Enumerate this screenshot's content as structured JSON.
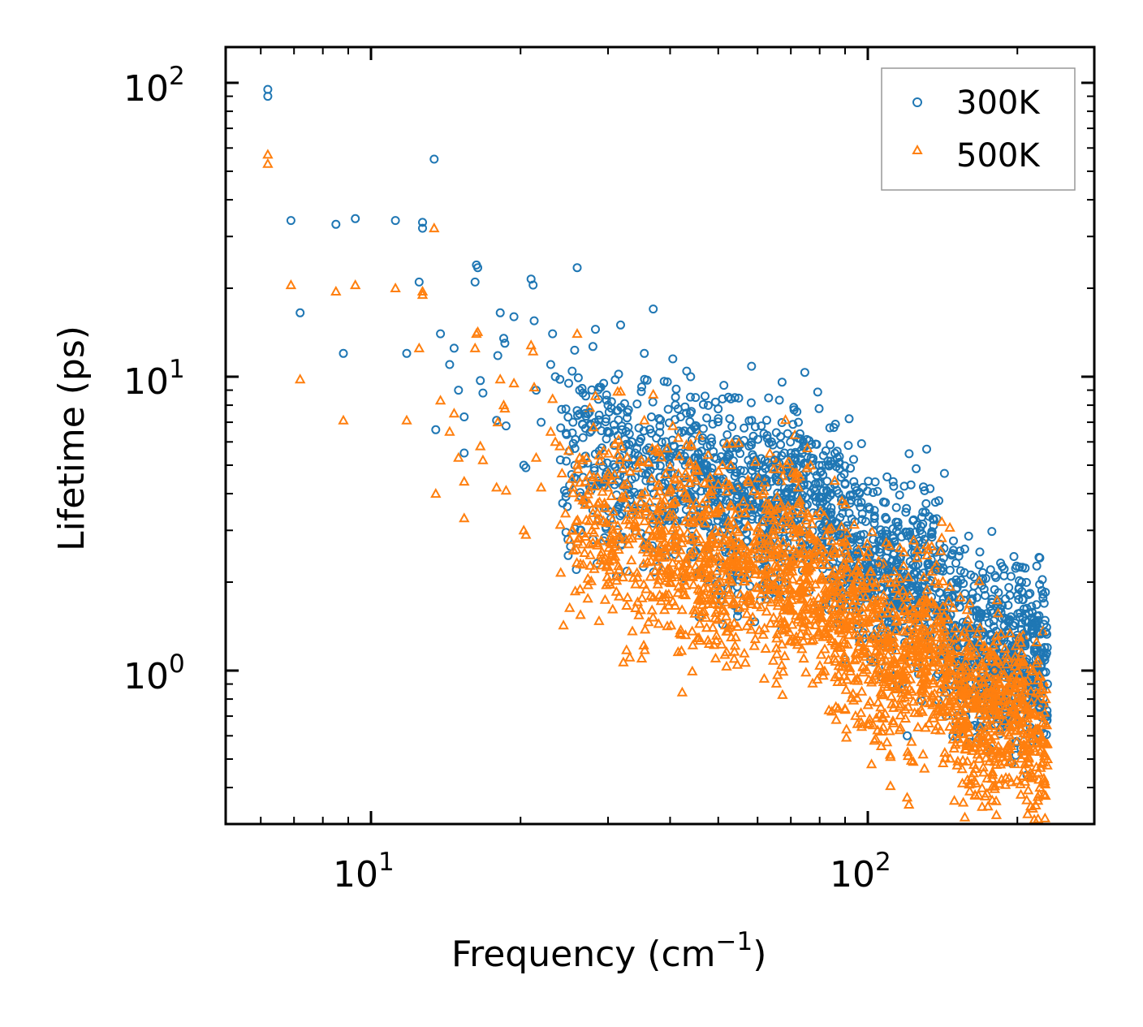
{
  "chart_data": {
    "type": "scatter",
    "title": "",
    "xlabel": {
      "text": "Frequency (cm",
      "sup": "−1",
      "tail": ")"
    },
    "ylabel": "Lifetime (ps)",
    "xscale": "log",
    "yscale": "log",
    "xlim": [
      5.3,
      265
    ],
    "ylim": [
      0.33,
      130
    ],
    "x_ticks": [
      {
        "value": 10,
        "base": "10",
        "exp": "1"
      },
      {
        "value": 100,
        "base": "10",
        "exp": "2"
      }
    ],
    "y_ticks": [
      {
        "value": 1,
        "base": "10",
        "exp": "0"
      },
      {
        "value": 10,
        "base": "10",
        "exp": "1"
      },
      {
        "value": 100,
        "base": "10",
        "exp": "2"
      }
    ],
    "grid": false,
    "legend_position": "top-right",
    "series": [
      {
        "name": "300K",
        "marker": "circle",
        "color": "#1f77b4",
        "points": [
          [
            6.2,
            95
          ],
          [
            6.2,
            90
          ],
          [
            6.9,
            34
          ],
          [
            7.2,
            16.5
          ],
          [
            8.5,
            33
          ],
          [
            8.8,
            12
          ],
          [
            9.3,
            34.5
          ],
          [
            11.2,
            34
          ],
          [
            11.8,
            12
          ],
          [
            12.5,
            21
          ],
          [
            12.7,
            32
          ],
          [
            12.7,
            33.5
          ],
          [
            13.4,
            55
          ],
          [
            13.5,
            6.6
          ],
          [
            13.8,
            14
          ],
          [
            14.4,
            11
          ],
          [
            14.7,
            12.5
          ],
          [
            15.0,
            9
          ],
          [
            15.4,
            5.5
          ],
          [
            15.4,
            7.3
          ],
          [
            16.2,
            21
          ],
          [
            16.3,
            24
          ],
          [
            16.4,
            23.5
          ],
          [
            16.6,
            9.7
          ],
          [
            16.8,
            8.8
          ],
          [
            17.9,
            7.1
          ],
          [
            18.0,
            11.8
          ],
          [
            18.2,
            16.5
          ],
          [
            18.5,
            13.5
          ],
          [
            18.6,
            13
          ],
          [
            18.7,
            6.8
          ],
          [
            19.4,
            16
          ],
          [
            20.3,
            5
          ],
          [
            20.5,
            4.9
          ],
          [
            21.0,
            21.5
          ],
          [
            21.2,
            20.5
          ],
          [
            21.3,
            15.5
          ],
          [
            21.5,
            9
          ],
          [
            22.0,
            7
          ],
          [
            23.0,
            11
          ],
          [
            23.2,
            14
          ],
          [
            23.5,
            10
          ],
          [
            24.0,
            9.8
          ],
          [
            25.0,
            9.5
          ],
          [
            25.5,
            7
          ],
          [
            26.0,
            23.5
          ],
          [
            26.3,
            9
          ],
          [
            26.7,
            8.8
          ],
          [
            27.0,
            7.5
          ],
          [
            28.3,
            14.5
          ],
          [
            28.8,
            9.2
          ],
          [
            29.4,
            9.5
          ],
          [
            30.0,
            8
          ],
          [
            31.5,
            10.2
          ],
          [
            31.8,
            15
          ],
          [
            32.0,
            6.6
          ],
          [
            33.5,
            6
          ],
          [
            34.0,
            5.5
          ],
          [
            35.0,
            8.9
          ],
          [
            35.5,
            12
          ],
          [
            37.0,
            17
          ],
          [
            38.0,
            7.2
          ],
          [
            39.5,
            9.6
          ],
          [
            40.5,
            11.5
          ],
          [
            42.0,
            7.3
          ],
          [
            44.0,
            10
          ],
          [
            45.0,
            8.5
          ],
          [
            46.5,
            6.2
          ],
          [
            47.5,
            5.8
          ],
          [
            48.5,
            6
          ],
          [
            50.0,
            7.2
          ],
          [
            51.0,
            8.4
          ],
          [
            53.0,
            8.4
          ],
          [
            55.0,
            4.2
          ],
          [
            58.0,
            3.8
          ],
          [
            62.0,
            4.5
          ],
          [
            64.0,
            6
          ],
          [
            65.0,
            5.2
          ],
          [
            66.0,
            4.4
          ],
          [
            70.0,
            5.5
          ],
          [
            72.0,
            7.6
          ],
          [
            72.5,
            7
          ],
          [
            73.0,
            6.4
          ],
          [
            78.0,
            3.9
          ],
          [
            82.0,
            3.2
          ],
          [
            88.0,
            2.9
          ],
          [
            95.0,
            2.5
          ],
          [
            105.0,
            2.3
          ],
          [
            110.0,
            2.2
          ],
          [
            114.0,
            3.2
          ],
          [
            115.0,
            3.1
          ],
          [
            120.0,
            0.6
          ],
          [
            130.0,
            2.8
          ],
          [
            138.0,
            2.2
          ],
          [
            152.0,
            1.2
          ],
          [
            165.0,
            1.6
          ],
          [
            180.0,
            1.0
          ],
          [
            198.0,
            1.45
          ],
          [
            202.0,
            2.25
          ],
          [
            204.0,
            2.0
          ],
          [
            210.0,
            1.3
          ],
          [
            222.0,
            0.75
          ],
          [
            228.0,
            1.35
          ],
          [
            230.0,
            0.9
          ]
        ]
      },
      {
        "name": "500K",
        "marker": "triangle",
        "color": "#ff7f0e",
        "points": [
          [
            6.2,
            57
          ],
          [
            6.2,
            53
          ],
          [
            6.9,
            20.5
          ],
          [
            7.2,
            9.8
          ],
          [
            8.5,
            19.5
          ],
          [
            8.8,
            7.1
          ],
          [
            9.3,
            20.5
          ],
          [
            11.2,
            20
          ],
          [
            11.8,
            7.1
          ],
          [
            12.5,
            12.5
          ],
          [
            12.7,
            19.5
          ],
          [
            12.7,
            19
          ],
          [
            13.4,
            32
          ],
          [
            13.5,
            4
          ],
          [
            13.8,
            8.3
          ],
          [
            14.4,
            6.5
          ],
          [
            14.7,
            7.5
          ],
          [
            15.0,
            5.3
          ],
          [
            15.4,
            3.3
          ],
          [
            15.4,
            4.4
          ],
          [
            16.2,
            12.5
          ],
          [
            16.3,
            14
          ],
          [
            16.4,
            14.2
          ],
          [
            16.6,
            5.8
          ],
          [
            16.8,
            5.2
          ],
          [
            17.9,
            4.2
          ],
          [
            18.0,
            7
          ],
          [
            18.2,
            9.8
          ],
          [
            18.5,
            8
          ],
          [
            18.6,
            7.8
          ],
          [
            18.7,
            4.1
          ],
          [
            19.4,
            9.5
          ],
          [
            20.3,
            3
          ],
          [
            20.5,
            2.9
          ],
          [
            21.0,
            12.8
          ],
          [
            21.2,
            12.2
          ],
          [
            21.3,
            9.2
          ],
          [
            21.5,
            5.3
          ],
          [
            22.0,
            4.2
          ],
          [
            23.0,
            6.5
          ],
          [
            23.2,
            8.4
          ],
          [
            23.5,
            6
          ],
          [
            24.0,
            5.8
          ],
          [
            25.0,
            5.6
          ],
          [
            25.5,
            4.2
          ],
          [
            26.0,
            14
          ],
          [
            26.3,
            5.3
          ],
          [
            26.7,
            5.2
          ],
          [
            27.0,
            4.4
          ],
          [
            28.3,
            8.6
          ],
          [
            28.8,
            5.4
          ],
          [
            29.4,
            5.6
          ],
          [
            30.0,
            4.7
          ],
          [
            31.5,
            6.1
          ],
          [
            31.8,
            8.9
          ],
          [
            32.0,
            3.9
          ],
          [
            33.5,
            3.5
          ],
          [
            34.0,
            3.2
          ],
          [
            35.0,
            5.2
          ],
          [
            35.5,
            7.1
          ],
          [
            37.0,
            8.7
          ],
          [
            38.0,
            4.3
          ],
          [
            39.5,
            5.7
          ],
          [
            40.5,
            6.8
          ],
          [
            42.0,
            4.3
          ],
          [
            44.0,
            5.9
          ],
          [
            45.0,
            5.0
          ],
          [
            46.5,
            3.7
          ],
          [
            47.5,
            3.4
          ],
          [
            48.5,
            2.4
          ],
          [
            50.0,
            4.3
          ],
          [
            51.0,
            5.0
          ],
          [
            53.0,
            5.0
          ],
          [
            55.0,
            2.5
          ],
          [
            58.0,
            2.3
          ],
          [
            62.0,
            2.7
          ],
          [
            64.0,
            3.5
          ],
          [
            65.0,
            3.1
          ],
          [
            66.0,
            2.6
          ],
          [
            70.0,
            3.2
          ],
          [
            72.0,
            4.5
          ],
          [
            72.5,
            4.2
          ],
          [
            73.0,
            3.8
          ],
          [
            78.0,
            2.3
          ],
          [
            82.0,
            1.9
          ],
          [
            88.0,
            1.7
          ],
          [
            95.0,
            1.5
          ],
          [
            105.0,
            1.3
          ],
          [
            110.0,
            1.3
          ],
          [
            114.0,
            1.9
          ],
          [
            115.0,
            1.8
          ],
          [
            120.0,
            0.37
          ],
          [
            121.0,
            0.35
          ],
          [
            130.0,
            1.65
          ],
          [
            138.0,
            1.3
          ],
          [
            152.0,
            0.7
          ],
          [
            165.0,
            0.9
          ],
          [
            180.0,
            0.6
          ],
          [
            198.0,
            0.85
          ],
          [
            202.0,
            1.3
          ],
          [
            204.0,
            1.15
          ],
          [
            210.0,
            0.75
          ],
          [
            222.0,
            0.4
          ],
          [
            228.0,
            0.8
          ],
          [
            230.0,
            0.5
          ]
        ],
        "clusters": []
      }
    ],
    "clusters": [
      {
        "series": "300K",
        "x_range": [
          24,
          230
        ],
        "y_center_at_x": [
          [
            24,
            5.5
          ],
          [
            50,
            3.8
          ],
          [
            68,
            3.6
          ],
          [
            72,
            4.5
          ],
          [
            90,
            2.6
          ],
          [
            115,
            2.0
          ],
          [
            135,
            2.0
          ],
          [
            160,
            1.2
          ],
          [
            200,
            1.2
          ],
          [
            228,
            1.0
          ]
        ],
        "spread": 0.16,
        "count": 2100
      },
      {
        "series": "500K",
        "x_range": [
          24,
          230
        ],
        "y_center_at_x": [
          [
            24,
            3.2
          ],
          [
            50,
            2.3
          ],
          [
            68,
            2.2
          ],
          [
            72,
            2.5
          ],
          [
            90,
            1.5
          ],
          [
            115,
            1.1
          ],
          [
            135,
            1.2
          ],
          [
            160,
            0.7
          ],
          [
            200,
            0.7
          ],
          [
            228,
            0.55
          ]
        ],
        "spread": 0.17,
        "count": 2100
      }
    ]
  }
}
